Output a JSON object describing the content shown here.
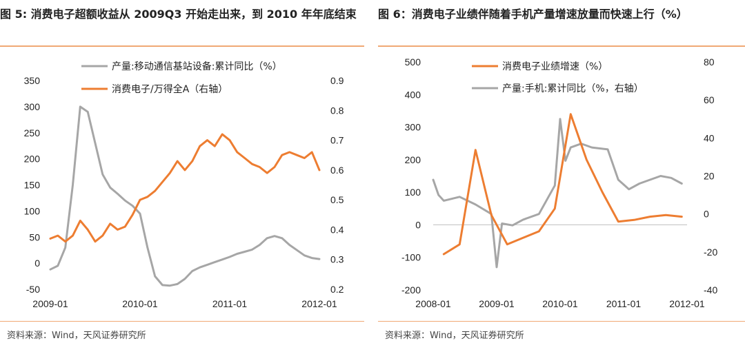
{
  "left": {
    "title": "图 5: 消费电子超额收益从 2009Q3 开始走出来，到 2010 年年底结束",
    "source": "资料来源：Wind，天风证券研究所"
  },
  "right": {
    "title": "图 6：消费电子业绩伴随着手机产量增速放量而快速上行（%）",
    "source": "资料来源：Wind，天风证券研究所"
  },
  "chart_data": [
    {
      "type": "line",
      "x_ticks": [
        "2009-01",
        "2010-01",
        "2011-01",
        "2012-01"
      ],
      "x_range": [
        "2009-01",
        "2012-01"
      ],
      "ylim_left": [
        -50,
        350
      ],
      "yticks_left": [
        "-50",
        "0",
        "50",
        "100",
        "150",
        "200",
        "250",
        "300",
        "350"
      ],
      "ylim_right": [
        0.2,
        0.9
      ],
      "yticks_right": [
        "0.2",
        "0.3",
        "0.4",
        "0.5",
        "0.6",
        "0.7",
        "0.8",
        "0.9"
      ],
      "legend_position": "top",
      "series": [
        {
          "name": "产量:移动通信基站设备:累计同比（%）",
          "color": "#a6a6a6",
          "axis": "left",
          "points": [
            [
              "2009-01",
              -12
            ],
            [
              "2009-02",
              -5
            ],
            [
              "2009-03",
              30
            ],
            [
              "2009-04",
              150
            ],
            [
              "2009-05",
              300
            ],
            [
              "2009-06",
              290
            ],
            [
              "2009-07",
              230
            ],
            [
              "2009-08",
              170
            ],
            [
              "2009-09",
              145
            ],
            [
              "2009-10",
              133
            ],
            [
              "2009-11",
              120
            ],
            [
              "2009-12",
              110
            ],
            [
              "2010-01",
              95
            ],
            [
              "2010-02",
              30
            ],
            [
              "2010-03",
              -25
            ],
            [
              "2010-04",
              -42
            ],
            [
              "2010-05",
              -43
            ],
            [
              "2010-06",
              -40
            ],
            [
              "2010-07",
              -30
            ],
            [
              "2010-08",
              -15
            ],
            [
              "2010-09",
              -8
            ],
            [
              "2010-10",
              -3
            ],
            [
              "2010-11",
              2
            ],
            [
              "2010-12",
              7
            ],
            [
              "2011-01",
              12
            ],
            [
              "2011-02",
              18
            ],
            [
              "2011-03",
              22
            ],
            [
              "2011-04",
              26
            ],
            [
              "2011-05",
              35
            ],
            [
              "2011-06",
              48
            ],
            [
              "2011-07",
              52
            ],
            [
              "2011-08",
              48
            ],
            [
              "2011-09",
              35
            ],
            [
              "2011-10",
              25
            ],
            [
              "2011-11",
              15
            ],
            [
              "2011-12",
              10
            ],
            [
              "2012-01",
              8
            ]
          ]
        },
        {
          "name": "消费电子/万得全A（右轴）",
          "color": "#ed7d31",
          "axis": "right",
          "points": [
            [
              "2009-01",
              0.37
            ],
            [
              "2009-02",
              0.38
            ],
            [
              "2009-03",
              0.36
            ],
            [
              "2009-04",
              0.38
            ],
            [
              "2009-05",
              0.43
            ],
            [
              "2009-06",
              0.4
            ],
            [
              "2009-07",
              0.36
            ],
            [
              "2009-08",
              0.38
            ],
            [
              "2009-09",
              0.42
            ],
            [
              "2009-10",
              0.4
            ],
            [
              "2009-11",
              0.41
            ],
            [
              "2009-12",
              0.45
            ],
            [
              "2010-01",
              0.5
            ],
            [
              "2010-02",
              0.51
            ],
            [
              "2010-03",
              0.53
            ],
            [
              "2010-04",
              0.56
            ],
            [
              "2010-05",
              0.59
            ],
            [
              "2010-06",
              0.63
            ],
            [
              "2010-07",
              0.6
            ],
            [
              "2010-08",
              0.63
            ],
            [
              "2010-09",
              0.68
            ],
            [
              "2010-10",
              0.7
            ],
            [
              "2010-11",
              0.68
            ],
            [
              "2010-12",
              0.72
            ],
            [
              "2011-01",
              0.7
            ],
            [
              "2011-02",
              0.66
            ],
            [
              "2011-03",
              0.64
            ],
            [
              "2011-04",
              0.62
            ],
            [
              "2011-05",
              0.61
            ],
            [
              "2011-06",
              0.59
            ],
            [
              "2011-07",
              0.61
            ],
            [
              "2011-08",
              0.65
            ],
            [
              "2011-09",
              0.66
            ],
            [
              "2011-10",
              0.65
            ],
            [
              "2011-11",
              0.64
            ],
            [
              "2011-12",
              0.66
            ],
            [
              "2012-01",
              0.6
            ]
          ]
        }
      ]
    },
    {
      "type": "line",
      "x_ticks": [
        "2008-01",
        "2009-01",
        "2010-01",
        "2011-01",
        "2012-01"
      ],
      "x_range": [
        "2008-01",
        "2012-01"
      ],
      "ylim_left": [
        -200,
        500
      ],
      "yticks_left": [
        "-200",
        "-100",
        "0",
        "100",
        "200",
        "300",
        "400",
        "500"
      ],
      "ylim_right": [
        -40,
        80
      ],
      "yticks_right": [
        "-40",
        "-20",
        "0",
        "20",
        "40",
        "60",
        "80"
      ],
      "legend_position": "top",
      "series": [
        {
          "name": "消费电子业绩增速（%）",
          "color": "#ed7d31",
          "axis": "left",
          "points": [
            [
              "2008-03",
              -90
            ],
            [
              "2008-06",
              -60
            ],
            [
              "2008-09",
              230
            ],
            [
              "2008-12",
              30
            ],
            [
              "2009-03",
              -60
            ],
            [
              "2009-06",
              -40
            ],
            [
              "2009-09",
              -20
            ],
            [
              "2009-12",
              50
            ],
            [
              "2010-03",
              340
            ],
            [
              "2010-06",
              200
            ],
            [
              "2010-09",
              100
            ],
            [
              "2010-12",
              10
            ],
            [
              "2011-03",
              15
            ],
            [
              "2011-06",
              25
            ],
            [
              "2011-09",
              30
            ],
            [
              "2011-12",
              25
            ]
          ]
        },
        {
          "name": "产量:手机:累计同比（%，右轴）",
          "color": "#a6a6a6",
          "axis": "right",
          "points": [
            [
              "2008-01",
              18
            ],
            [
              "2008-02",
              10
            ],
            [
              "2008-03",
              7
            ],
            [
              "2008-06",
              9
            ],
            [
              "2008-09",
              5
            ],
            [
              "2008-12",
              0
            ],
            [
              "2009-01",
              -28
            ],
            [
              "2009-02",
              -5
            ],
            [
              "2009-04",
              -6
            ],
            [
              "2009-06",
              -3
            ],
            [
              "2009-09",
              0
            ],
            [
              "2009-12",
              15
            ],
            [
              "2010-01",
              50
            ],
            [
              "2010-02",
              28
            ],
            [
              "2010-03",
              35
            ],
            [
              "2010-05",
              37
            ],
            [
              "2010-07",
              35
            ],
            [
              "2010-10",
              34
            ],
            [
              "2010-12",
              18
            ],
            [
              "2011-02",
              13
            ],
            [
              "2011-04",
              16
            ],
            [
              "2011-06",
              18
            ],
            [
              "2011-08",
              20
            ],
            [
              "2011-10",
              19
            ],
            [
              "2011-12",
              16
            ]
          ]
        }
      ]
    }
  ]
}
